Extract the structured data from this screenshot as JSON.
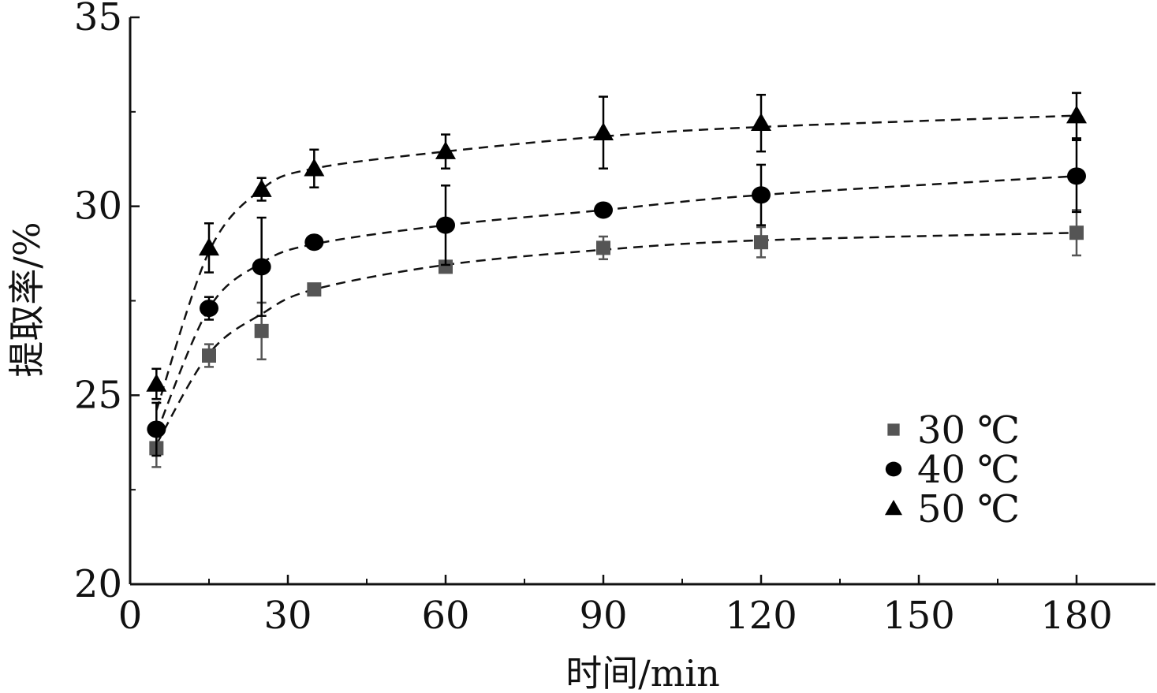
{
  "chart_data": {
    "type": "scatter",
    "xlabel": "时间/min",
    "ylabel": "提取率/%",
    "x_tick_labels": [
      "0",
      "30",
      "60",
      "90",
      "120",
      "150",
      "180"
    ],
    "y_ticks": [
      20,
      25,
      30,
      35
    ],
    "ylim": [
      20,
      35
    ],
    "legend_position": "right-middle",
    "grid": false,
    "series": [
      {
        "name": "30 ℃",
        "marker": "square",
        "color": "#555555",
        "x": [
          5,
          15,
          25,
          35,
          60,
          90,
          120,
          180
        ],
        "y": [
          23.6,
          26.05,
          26.7,
          27.8,
          28.4,
          28.9,
          29.05,
          29.3
        ],
        "err": [
          0.5,
          0.3,
          0.75,
          0.1,
          0.1,
          0.3,
          0.4,
          0.6
        ],
        "fit_y": [
          23.7,
          26.1,
          27.15,
          27.8,
          28.45,
          28.85,
          29.1,
          29.3
        ]
      },
      {
        "name": "40 ℃",
        "marker": "circle",
        "color": "#000000",
        "x": [
          5,
          15,
          25,
          35,
          60,
          90,
          120,
          180
        ],
        "y": [
          24.1,
          27.3,
          28.4,
          29.05,
          29.5,
          29.9,
          30.3,
          30.8
        ],
        "err": [
          0.7,
          0.3,
          1.3,
          0.1,
          1.05,
          0.1,
          0.8,
          0.95
        ],
        "fit_y": [
          24.0,
          27.3,
          28.5,
          29.0,
          29.5,
          29.9,
          30.3,
          30.8
        ]
      },
      {
        "name": "50 ℃",
        "marker": "triangle",
        "color": "#000000",
        "x": [
          5,
          15,
          25,
          35,
          60,
          90,
          120,
          180
        ],
        "y": [
          25.3,
          28.9,
          30.45,
          31.0,
          31.45,
          31.95,
          32.2,
          32.4
        ],
        "err": [
          0.4,
          0.65,
          0.3,
          0.5,
          0.45,
          0.95,
          0.75,
          0.6
        ],
        "fit_y": [
          24.6,
          28.8,
          30.45,
          31.0,
          31.45,
          31.85,
          32.1,
          32.4
        ]
      }
    ]
  }
}
